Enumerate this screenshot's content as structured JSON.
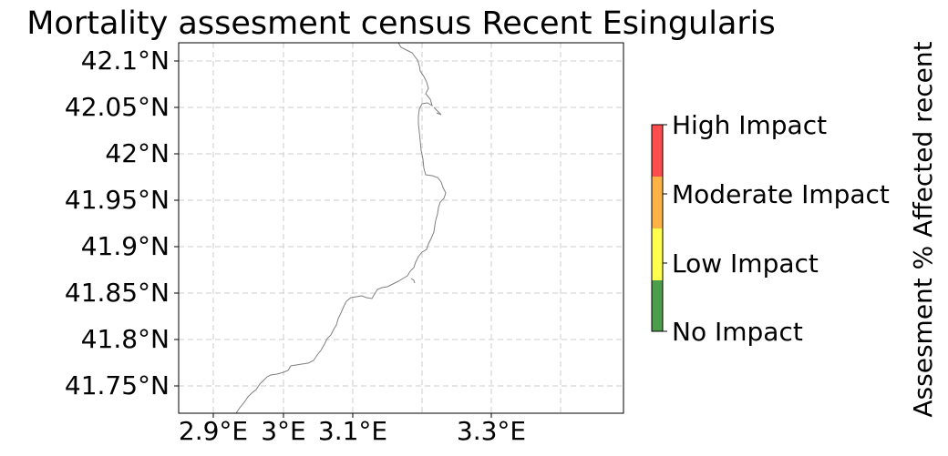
{
  "map": {
    "title": "Mortality assesment census Recent Esingularis",
    "y_ticks": [
      "42.1°N",
      "42.05°N",
      "42°N",
      "41.95°N",
      "41.9°N",
      "41.85°N",
      "41.8°N",
      "41.75°N"
    ],
    "x_ticks": [
      "2.9°E",
      "3°E",
      "3.1°E",
      "3.3°E"
    ],
    "extent": {
      "lon": [
        2.85,
        3.49
      ],
      "lat": [
        41.72,
        42.12
      ]
    },
    "gridlines": true,
    "coastline_color": "#808080"
  },
  "colorbar": {
    "title": "Assesment % Affected recent",
    "categories": [
      {
        "label": "High Impact",
        "color": "#ff4d4d"
      },
      {
        "label": "Moderate Impact",
        "color": "#ffb347"
      },
      {
        "label": "Low Impact",
        "color": "#ffff4d"
      },
      {
        "label": "No Impact",
        "color": "#4c9e4c"
      }
    ]
  }
}
